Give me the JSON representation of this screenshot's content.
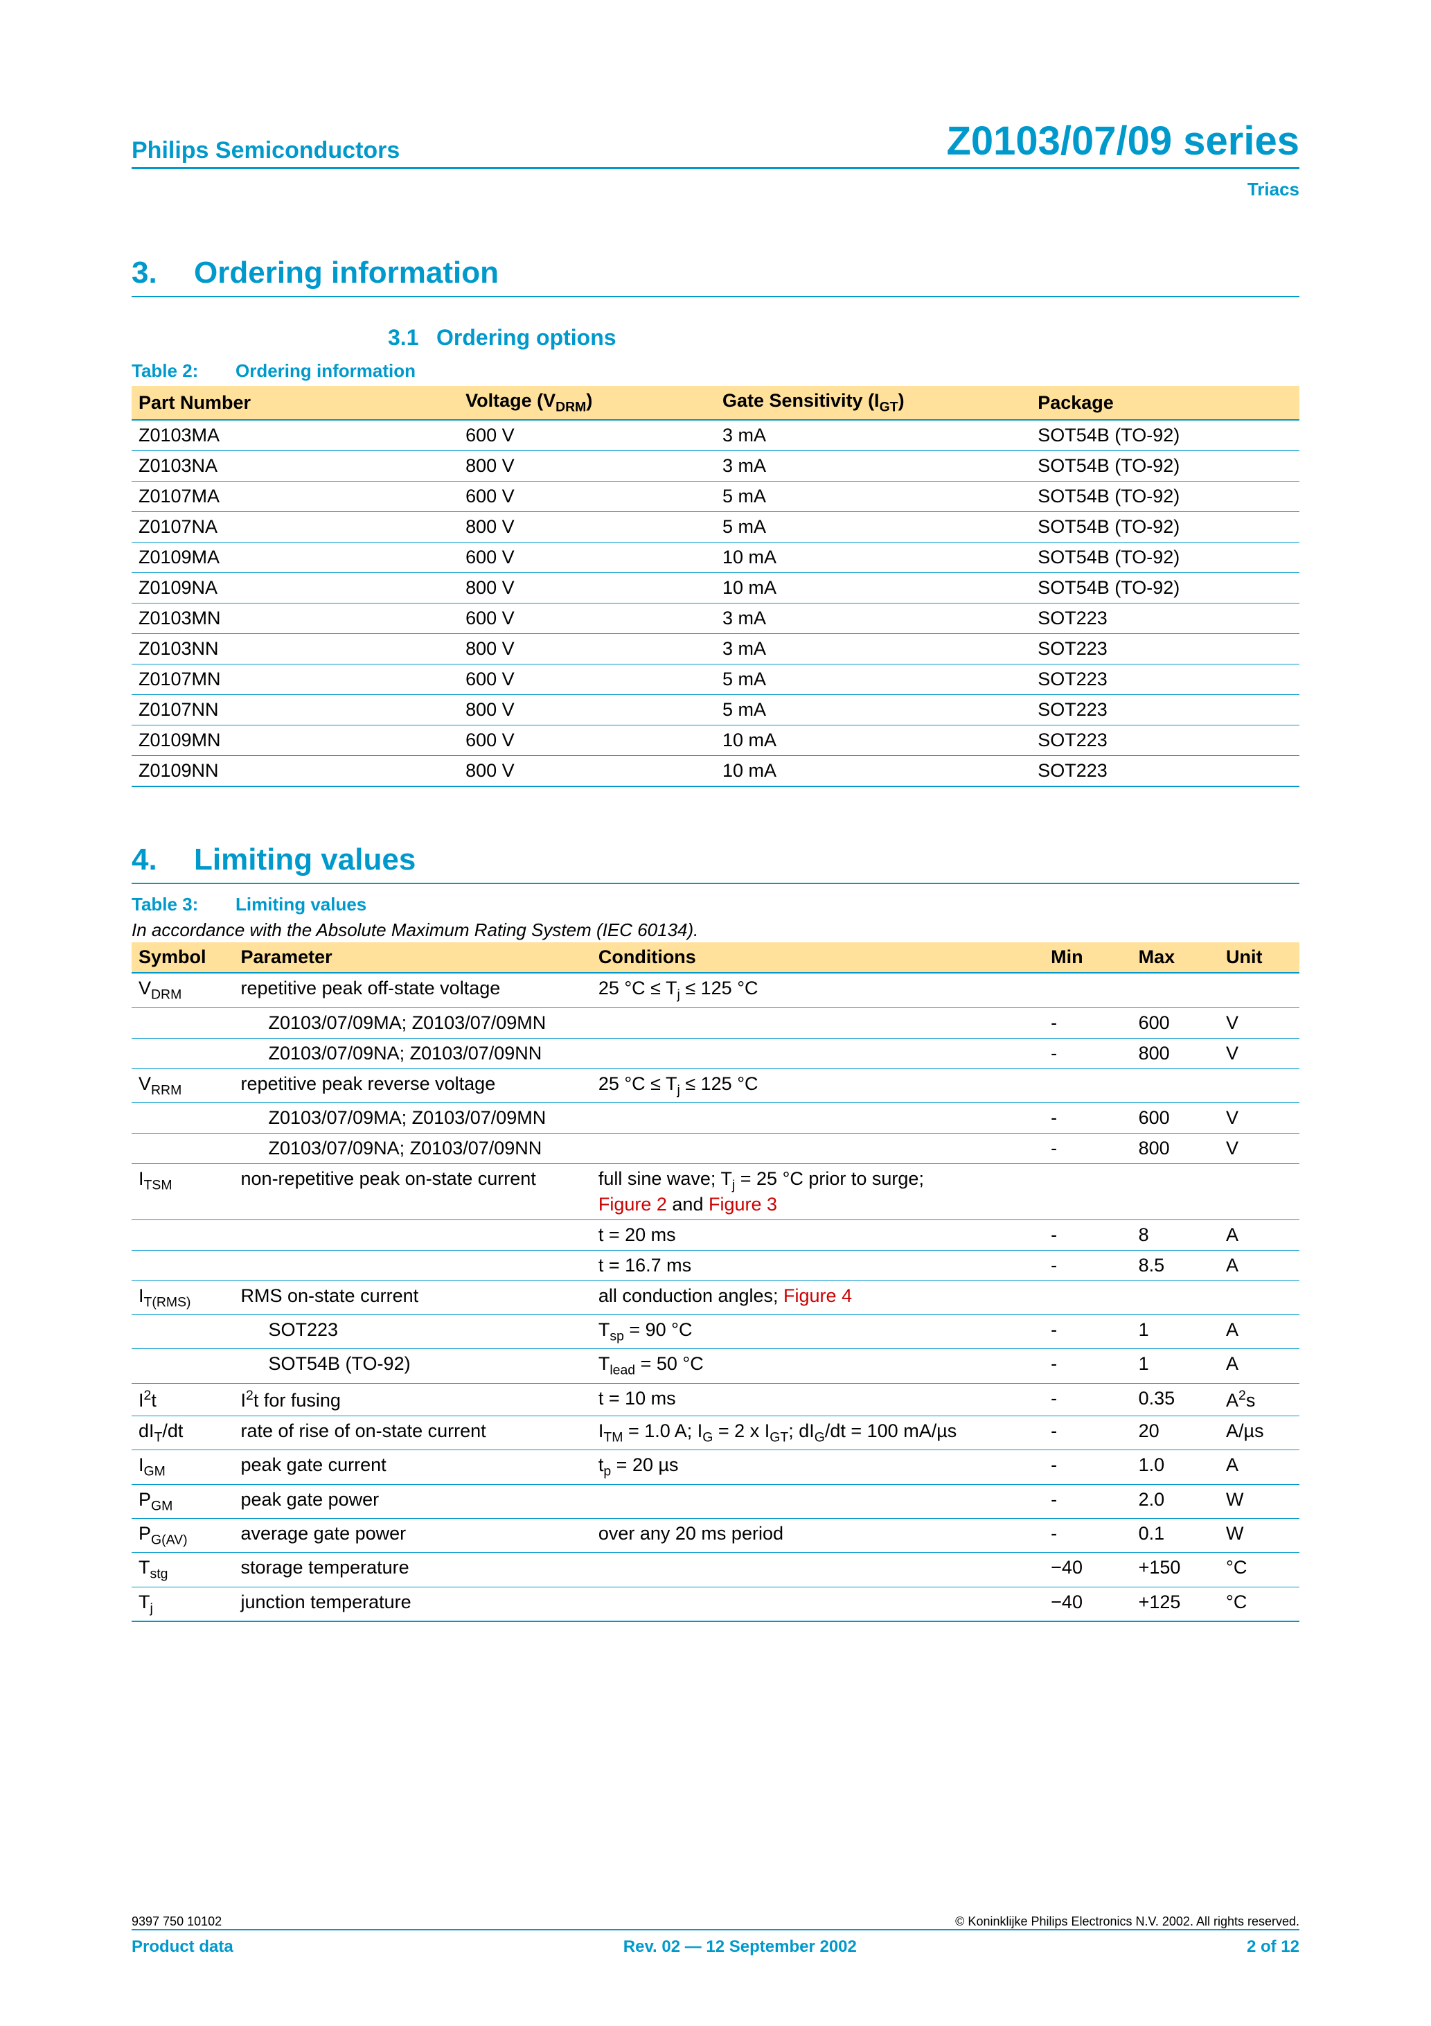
{
  "colors": {
    "accent": "#0099cc",
    "header_bg": "#ffe19b",
    "figref": "#cc0000",
    "text": "#000000",
    "bg": "#ffffff"
  },
  "header": {
    "brand": "Philips Semiconductors",
    "series": "Z0103/07/09 series",
    "subtitle": "Triacs"
  },
  "sec3": {
    "num": "3.",
    "title": "Ordering information"
  },
  "sec3_1": {
    "num": "3.1",
    "title": "Ordering options"
  },
  "t2": {
    "label": "Table 2:",
    "caption": "Ordering information",
    "cols": {
      "part": "Part Number",
      "volt_pre": "Voltage (V",
      "volt_sub": "DRM",
      "volt_post": ")",
      "gate_pre": "Gate Sensitivity (I",
      "gate_sub": "GT",
      "gate_post": ")",
      "pkg": "Package"
    },
    "rows": [
      {
        "part": "Z0103MA",
        "volt": "600 V",
        "gate": "3 mA",
        "pkg": "SOT54B (TO-92)"
      },
      {
        "part": "Z0103NA",
        "volt": "800 V",
        "gate": "3 mA",
        "pkg": "SOT54B (TO-92)"
      },
      {
        "part": "Z0107MA",
        "volt": "600 V",
        "gate": "5 mA",
        "pkg": "SOT54B (TO-92)"
      },
      {
        "part": "Z0107NA",
        "volt": "800 V",
        "gate": "5 mA",
        "pkg": "SOT54B (TO-92)"
      },
      {
        "part": "Z0109MA",
        "volt": "600 V",
        "gate": "10 mA",
        "pkg": "SOT54B (TO-92)"
      },
      {
        "part": "Z0109NA",
        "volt": "800 V",
        "gate": "10 mA",
        "pkg": "SOT54B (TO-92)"
      },
      {
        "part": "Z0103MN",
        "volt": "600 V",
        "gate": "3 mA",
        "pkg": "SOT223"
      },
      {
        "part": "Z0103NN",
        "volt": "800 V",
        "gate": "3 mA",
        "pkg": "SOT223"
      },
      {
        "part": "Z0107MN",
        "volt": "600 V",
        "gate": "5 mA",
        "pkg": "SOT223"
      },
      {
        "part": "Z0107NN",
        "volt": "800 V",
        "gate": "5 mA",
        "pkg": "SOT223"
      },
      {
        "part": "Z0109MN",
        "volt": "600 V",
        "gate": "10 mA",
        "pkg": "SOT223"
      },
      {
        "part": "Z0109NN",
        "volt": "800 V",
        "gate": "10 mA",
        "pkg": "SOT223"
      }
    ]
  },
  "sec4": {
    "num": "4.",
    "title": "Limiting values"
  },
  "t3": {
    "label": "Table 3:",
    "caption": "Limiting values",
    "note": "In accordance with the Absolute Maximum Rating System (IEC 60134).",
    "cols": {
      "sym": "Symbol",
      "par": "Parameter",
      "con": "Conditions",
      "min": "Min",
      "max": "Max",
      "unit": "Unit"
    },
    "r": {
      "vdrm": {
        "sym": "V",
        "sub": "DRM",
        "par": "repetitive peak off-state voltage",
        "con1": "25 °C ≤ T",
        "consub": "j",
        "con2": " ≤ 125 °C"
      },
      "vdrm_a": {
        "par": "Z0103/07/09MA; Z0103/07/09MN",
        "min": "-",
        "max": "600",
        "unit": "V"
      },
      "vdrm_b": {
        "par": "Z0103/07/09NA; Z0103/07/09NN",
        "min": "-",
        "max": "800",
        "unit": "V"
      },
      "vrrm": {
        "sym": "V",
        "sub": "RRM",
        "par": "repetitive peak reverse voltage",
        "con1": "25 °C ≤ T",
        "consub": "j",
        "con2": " ≤ 125 °C"
      },
      "vrrm_a": {
        "par": "Z0103/07/09MA; Z0103/07/09MN",
        "min": "-",
        "max": "600",
        "unit": "V"
      },
      "vrrm_b": {
        "par": "Z0103/07/09NA; Z0103/07/09NN",
        "min": "-",
        "max": "800",
        "unit": "V"
      },
      "itsm": {
        "sym": "I",
        "sub": "TSM",
        "par": "non-repetitive peak on-state current",
        "con1": "full sine wave; T",
        "consub": "j",
        "con2": " = 25 °C prior to surge; ",
        "fig1": "Figure 2",
        "and": " and ",
        "fig2": "Figure 3"
      },
      "itsm_a": {
        "con": "t = 20 ms",
        "min": "-",
        "max": "8",
        "unit": "A"
      },
      "itsm_b": {
        "con": "t = 16.7 ms",
        "min": "-",
        "max": "8.5",
        "unit": "A"
      },
      "itrms": {
        "sym": "I",
        "sub": "T(RMS)",
        "par": "RMS on-state current",
        "con": "all conduction angles; ",
        "fig": "Figure 4"
      },
      "itrms_a": {
        "par": "SOT223",
        "con1": "T",
        "consub": "sp",
        "con2": " = 90 °C",
        "min": "-",
        "max": "1",
        "unit": "A"
      },
      "itrms_b": {
        "par": "SOT54B (TO-92)",
        "con1": "T",
        "consub": "lead",
        "con2": " = 50 °C",
        "min": "-",
        "max": "1",
        "unit": "A"
      },
      "i2t": {
        "sym1": "I",
        "sup": "2",
        "sym2": "t",
        "par1": "I",
        "parsup": "2",
        "par2": "t for fusing",
        "con": "t =  10 ms",
        "min": "-",
        "max": "0.35",
        "unit1": "A",
        "unitsup": "2",
        "unit2": "s"
      },
      "didt": {
        "sym1": "dI",
        "sub1": "T",
        "sym2": "/dt",
        "par": "rate of rise of on-state current",
        "c1": "I",
        "cs1": "TM",
        "c2": " = 1.0 A; I",
        "cs2": "G",
        "c3": " = 2 x I",
        "cs3": "GT",
        "c4": "; dI",
        "cs4": "G",
        "c5": "/dt = 100 mA/µs",
        "min": "-",
        "max": "20",
        "unit": "A/µs"
      },
      "igm": {
        "sym": "I",
        "sub": "GM",
        "par": "peak gate current",
        "con1": "t",
        "consub": "p",
        "con2": " = 20 µs",
        "min": "-",
        "max": "1.0",
        "unit": "A"
      },
      "pgm": {
        "sym": "P",
        "sub": "GM",
        "par": "peak gate power",
        "min": "-",
        "max": "2.0",
        "unit": "W"
      },
      "pgav": {
        "sym": "P",
        "sub": "G(AV)",
        "par": "average gate power",
        "con": "over any 20 ms period",
        "min": "-",
        "max": "0.1",
        "unit": "W"
      },
      "tstg": {
        "sym": "T",
        "sub": "stg",
        "par": "storage temperature",
        "min": "−40",
        "max": "+150",
        "unit": "°C"
      },
      "tj": {
        "sym": "T",
        "sub": "j",
        "par": "junction temperature",
        "min": "−40",
        "max": "+125",
        "unit": "°C"
      }
    }
  },
  "footer": {
    "docnum": "9397 750 10102",
    "copyright": "© Koninklijke Philips Electronics N.V. 2002. All rights reserved.",
    "left": "Product data",
    "center": "Rev. 02 — 12 September 2002",
    "right": "2 of 12"
  }
}
